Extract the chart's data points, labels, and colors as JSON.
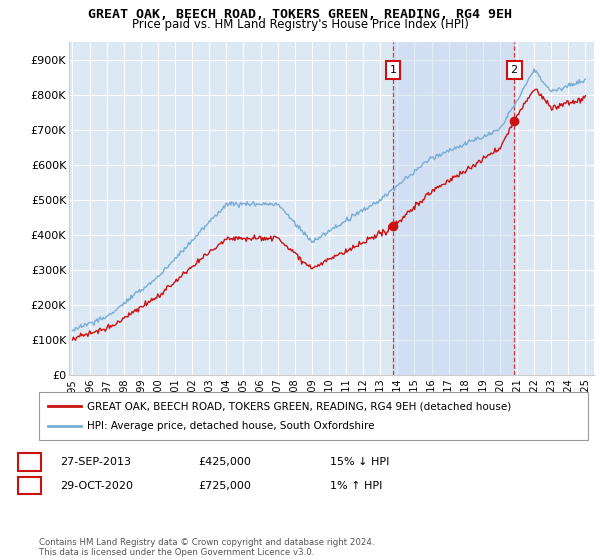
{
  "title": "GREAT OAK, BEECH ROAD, TOKERS GREEN, READING, RG4 9EH",
  "subtitle": "Price paid vs. HM Land Registry's House Price Index (HPI)",
  "ylabel_ticks": [
    "£0",
    "£100K",
    "£200K",
    "£300K",
    "£400K",
    "£500K",
    "£600K",
    "£700K",
    "£800K",
    "£900K"
  ],
  "ytick_vals": [
    0,
    100000,
    200000,
    300000,
    400000,
    500000,
    600000,
    700000,
    800000,
    900000
  ],
  "ylim": [
    0,
    950000
  ],
  "xlim_start": 1994.8,
  "xlim_end": 2025.5,
  "background_color": "#ffffff",
  "plot_bg_color": "#dde8f5",
  "plot_bg_color2": "#e8eef8",
  "grid_color": "#ffffff",
  "hpi_color": "#7aadd4",
  "price_color": "#cc1111",
  "sale1_year": 2013.75,
  "sale1_price": 425000,
  "sale2_year": 2020.83,
  "sale2_price": 725000,
  "legend_label1": "GREAT OAK, BEECH ROAD, TOKERS GREEN, READING, RG4 9EH (detached house)",
  "legend_label2": "HPI: Average price, detached house, South Oxfordshire",
  "annotation1": "1",
  "annotation2": "2",
  "row1": [
    "1",
    "27-SEP-2013",
    "£425,000",
    "15% ↓ HPI"
  ],
  "row2": [
    "2",
    "29-OCT-2020",
    "£725,000",
    "1% ↑ HPI"
  ],
  "footnote": "Contains HM Land Registry data © Crown copyright and database right 2024.\nThis data is licensed under the Open Government Licence v3.0."
}
